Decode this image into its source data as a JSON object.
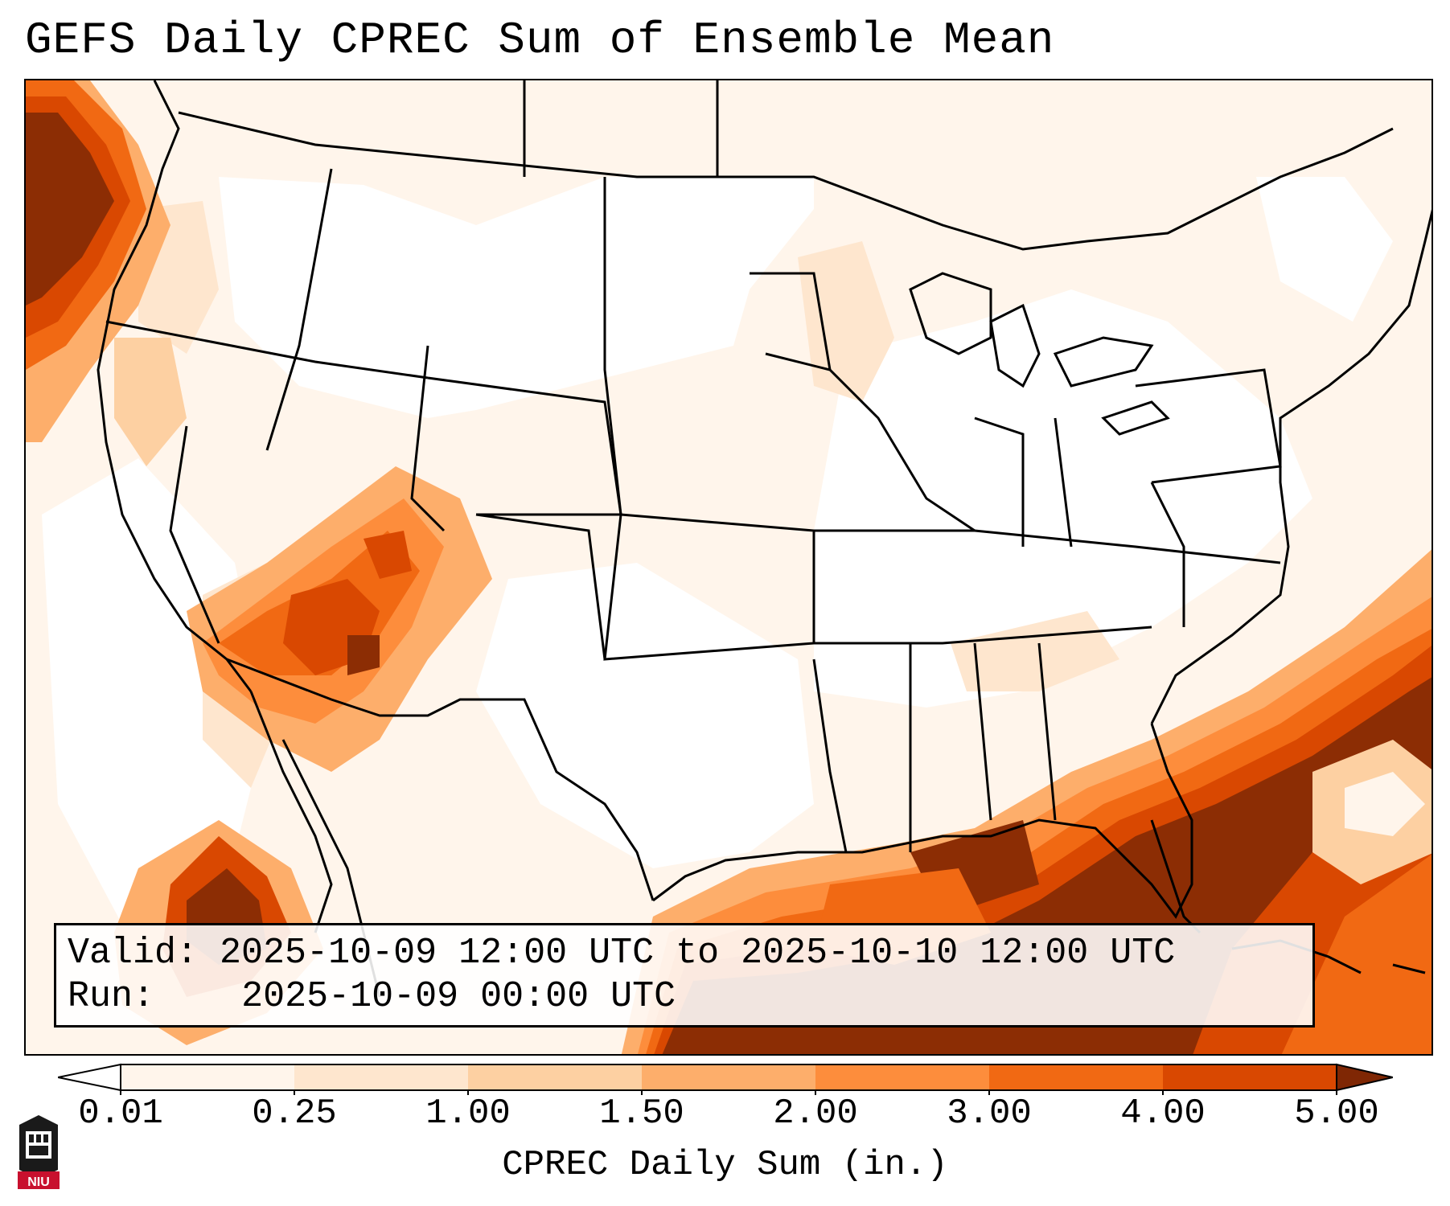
{
  "title": "GEFS Daily CPREC Sum of Ensemble Mean",
  "info": {
    "valid_label": "Valid:",
    "valid_value": "2025-10-09 12:00 UTC to 2025-10-10 12:00 UTC",
    "run_label": "Run:",
    "run_value": "2025-10-09 00:00 UTC"
  },
  "colorbar": {
    "label": "CPREC Daily Sum (in.)",
    "ticks": [
      "0.01",
      "0.25",
      "1.00",
      "1.50",
      "2.00",
      "3.00",
      "4.00",
      "5.00"
    ],
    "colors": [
      "#fff5eb",
      "#fee6ce",
      "#fdd0a2",
      "#fdae6b",
      "#fd8d3c",
      "#f16913",
      "#d94801",
      "#8c2d04"
    ],
    "under_color": "#ffffff",
    "over_color": "#7f2704"
  },
  "logo": {
    "text": "NIU",
    "colors": {
      "red": "#c8102e",
      "dark": "#1a1a1a"
    }
  }
}
